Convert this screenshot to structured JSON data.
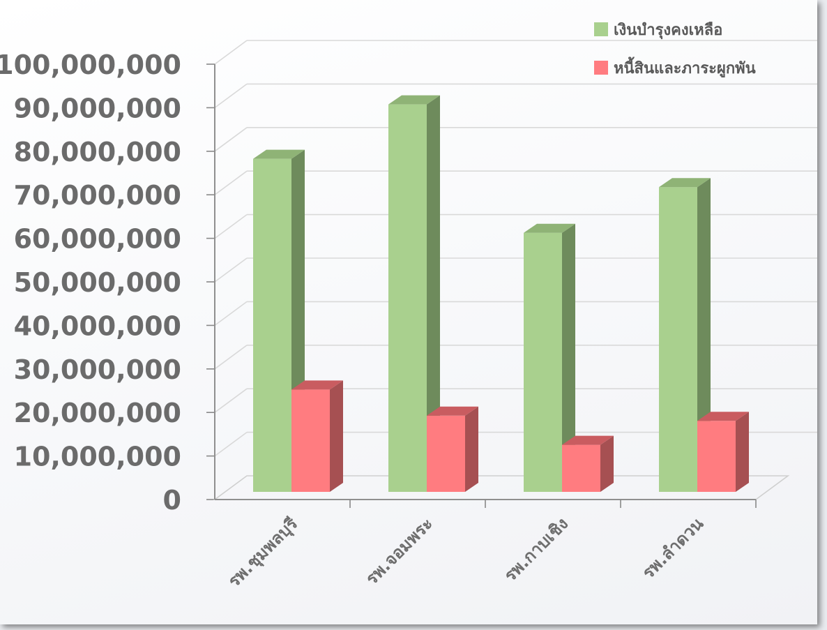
{
  "chart_data": {
    "type": "bar",
    "style": "3d-clustered-column",
    "categories": [
      "รพ.ชุมพลบุรี",
      "รพ.จอมพระ",
      "รพ.กาบเชิง",
      "รพ.ลำดวน"
    ],
    "series": [
      {
        "name": "เงินบำรุงคงเหลือ",
        "values": [
          76500000,
          89000000,
          59500000,
          70000000
        ],
        "color": "#a9d08e",
        "side_color": "#6e8b5c",
        "top_color": "#8fb376"
      },
      {
        "name": "หนี้สินและภาระผูกพัน",
        "values": [
          23500000,
          17500000,
          10800000,
          16300000
        ],
        "color": "#ff7c80",
        "side_color": "#a65052",
        "top_color": "#c95c60"
      }
    ],
    "ylim": [
      0,
      100000000
    ],
    "y_ticks": [
      0,
      10000000,
      20000000,
      30000000,
      40000000,
      50000000,
      60000000,
      70000000,
      80000000,
      90000000,
      100000000
    ],
    "y_tick_labels": [
      "0",
      "10,000,000",
      "20,000,000",
      "30,000,000",
      "40,000,000",
      "50,000,000",
      "60,000,000",
      "70,000,000",
      "80,000,000",
      "90,000,000",
      "100,000,000"
    ],
    "grid": true,
    "legend_position": "top-right",
    "title": "",
    "xlabel": "",
    "ylabel": ""
  }
}
